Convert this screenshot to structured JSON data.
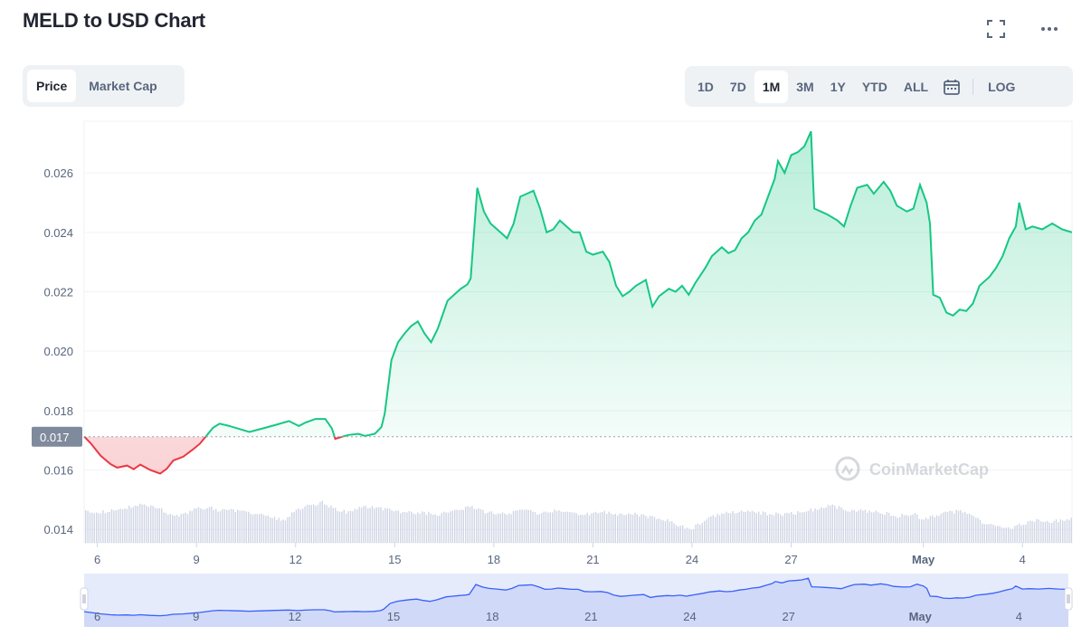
{
  "title": "MELD to USD Chart",
  "icons": {
    "fullscreen": "fullscreen-icon",
    "more": "more-icon",
    "calendar": "calendar-icon"
  },
  "tabs": [
    {
      "label": "Price",
      "active": true
    },
    {
      "label": "Market Cap",
      "active": false
    }
  ],
  "ranges": [
    {
      "label": "1D",
      "active": false
    },
    {
      "label": "7D",
      "active": false
    },
    {
      "label": "1M",
      "active": true
    },
    {
      "label": "3M",
      "active": false
    },
    {
      "label": "1Y",
      "active": false
    },
    {
      "label": "YTD",
      "active": false
    },
    {
      "label": "ALL",
      "active": false
    }
  ],
  "log_label": "LOG",
  "watermark": "CoinMarketCap",
  "colors": {
    "up": "#16c784",
    "down": "#ea3943",
    "navigator": "#3861fb",
    "volume": "#cfd6e4",
    "grid": "#eff2f5",
    "axis_text": "#58667e"
  },
  "chart_data": {
    "type": "line",
    "y_ticks": [
      "0.026",
      "0.024",
      "0.022",
      "0.020",
      "0.018",
      "0.016",
      "0.014"
    ],
    "y_tick_values": [
      0.026,
      0.024,
      0.022,
      0.02,
      0.018,
      0.016,
      0.014
    ],
    "ylim": [
      0.01355,
      0.02774
    ],
    "x_ticks": [
      {
        "label": "6",
        "day": 6
      },
      {
        "label": "9",
        "day": 9
      },
      {
        "label": "12",
        "day": 12
      },
      {
        "label": "15",
        "day": 15
      },
      {
        "label": "18",
        "day": 18
      },
      {
        "label": "21",
        "day": 21
      },
      {
        "label": "24",
        "day": 24
      },
      {
        "label": "27",
        "day": 27
      },
      {
        "label": "May",
        "day": 31
      },
      {
        "label": "4",
        "day": 34
      }
    ],
    "xlim": [
      5.6,
      35.5
    ],
    "reference_price": 0.01712,
    "reference_label": "0.017",
    "series": [
      {
        "points": [
          [
            5.6,
            0.01713
          ],
          [
            5.8,
            0.0169
          ],
          [
            6.1,
            0.01648
          ],
          [
            6.4,
            0.0162
          ],
          [
            6.6,
            0.01608
          ],
          [
            6.9,
            0.01615
          ],
          [
            7.1,
            0.01603
          ],
          [
            7.3,
            0.01618
          ],
          [
            7.6,
            0.016
          ],
          [
            7.9,
            0.01588
          ],
          [
            8.1,
            0.01604
          ],
          [
            8.3,
            0.01632
          ],
          [
            8.6,
            0.01645
          ],
          [
            8.9,
            0.0167
          ],
          [
            9.1,
            0.01688
          ],
          [
            9.3,
            0.01715
          ],
          [
            9.5,
            0.01742
          ],
          [
            9.7,
            0.01756
          ],
          [
            10.0,
            0.01748
          ],
          [
            10.3,
            0.01738
          ],
          [
            10.6,
            0.01728
          ],
          [
            11.0,
            0.0174
          ],
          [
            11.4,
            0.01752
          ],
          [
            11.8,
            0.01765
          ],
          [
            12.1,
            0.01748
          ],
          [
            12.3,
            0.0176
          ],
          [
            12.6,
            0.01772
          ],
          [
            12.9,
            0.01772
          ],
          [
            13.1,
            0.0174
          ],
          [
            13.2,
            0.01705
          ],
          [
            13.4,
            0.01712
          ],
          [
            13.6,
            0.01718
          ],
          [
            13.9,
            0.01722
          ],
          [
            14.1,
            0.01715
          ],
          [
            14.4,
            0.01722
          ],
          [
            14.6,
            0.01745
          ],
          [
            14.7,
            0.0179
          ],
          [
            14.8,
            0.0188
          ],
          [
            14.9,
            0.0197
          ],
          [
            15.1,
            0.0203
          ],
          [
            15.3,
            0.0206
          ],
          [
            15.5,
            0.02085
          ],
          [
            15.7,
            0.021
          ],
          [
            15.9,
            0.0206
          ],
          [
            16.1,
            0.0203
          ],
          [
            16.3,
            0.02075
          ],
          [
            16.6,
            0.0217
          ],
          [
            16.8,
            0.0219
          ],
          [
            17.0,
            0.0221
          ],
          [
            17.2,
            0.02225
          ],
          [
            17.3,
            0.02245
          ],
          [
            17.5,
            0.0255
          ],
          [
            17.7,
            0.0247
          ],
          [
            17.9,
            0.0243
          ],
          [
            18.2,
            0.024
          ],
          [
            18.4,
            0.0238
          ],
          [
            18.6,
            0.0243
          ],
          [
            18.8,
            0.0252
          ],
          [
            19.0,
            0.0253
          ],
          [
            19.2,
            0.0254
          ],
          [
            19.4,
            0.0248
          ],
          [
            19.6,
            0.024
          ],
          [
            19.8,
            0.0241
          ],
          [
            20.0,
            0.0244
          ],
          [
            20.2,
            0.0242
          ],
          [
            20.4,
            0.024
          ],
          [
            20.6,
            0.024
          ],
          [
            20.8,
            0.02335
          ],
          [
            21.0,
            0.02325
          ],
          [
            21.3,
            0.02335
          ],
          [
            21.5,
            0.023
          ],
          [
            21.7,
            0.0222
          ],
          [
            21.9,
            0.02185
          ],
          [
            22.1,
            0.022
          ],
          [
            22.3,
            0.0222
          ],
          [
            22.6,
            0.0224
          ],
          [
            22.8,
            0.0215
          ],
          [
            23.0,
            0.02185
          ],
          [
            23.3,
            0.0221
          ],
          [
            23.5,
            0.022
          ],
          [
            23.7,
            0.0222
          ],
          [
            23.9,
            0.0219
          ],
          [
            24.1,
            0.0223
          ],
          [
            24.4,
            0.0228
          ],
          [
            24.6,
            0.0232
          ],
          [
            24.9,
            0.0235
          ],
          [
            25.1,
            0.0233
          ],
          [
            25.3,
            0.0234
          ],
          [
            25.5,
            0.0238
          ],
          [
            25.7,
            0.024
          ],
          [
            25.9,
            0.0244
          ],
          [
            26.1,
            0.0246
          ],
          [
            26.3,
            0.0252
          ],
          [
            26.5,
            0.0258
          ],
          [
            26.6,
            0.0264
          ],
          [
            26.8,
            0.026
          ],
          [
            27.0,
            0.0266
          ],
          [
            27.2,
            0.0267
          ],
          [
            27.4,
            0.0269
          ],
          [
            27.6,
            0.0274
          ],
          [
            27.7,
            0.0248
          ],
          [
            27.9,
            0.0247
          ],
          [
            28.1,
            0.0246
          ],
          [
            28.4,
            0.0244
          ],
          [
            28.6,
            0.0242
          ],
          [
            28.8,
            0.0249
          ],
          [
            29.0,
            0.0255
          ],
          [
            29.3,
            0.0256
          ],
          [
            29.5,
            0.0253
          ],
          [
            29.8,
            0.0257
          ],
          [
            30.0,
            0.0254
          ],
          [
            30.2,
            0.0249
          ],
          [
            30.5,
            0.0247
          ],
          [
            30.7,
            0.0248
          ],
          [
            30.9,
            0.0256
          ],
          [
            31.1,
            0.025
          ],
          [
            31.2,
            0.0243
          ],
          [
            31.3,
            0.0219
          ],
          [
            31.5,
            0.0218
          ],
          [
            31.7,
            0.0213
          ],
          [
            31.9,
            0.0212
          ],
          [
            32.1,
            0.0214
          ],
          [
            32.3,
            0.02135
          ],
          [
            32.5,
            0.0216
          ],
          [
            32.7,
            0.0222
          ],
          [
            33.0,
            0.0225
          ],
          [
            33.2,
            0.0228
          ],
          [
            33.4,
            0.0232
          ],
          [
            33.6,
            0.0238
          ],
          [
            33.8,
            0.0242
          ],
          [
            33.9,
            0.025
          ],
          [
            34.1,
            0.0241
          ],
          [
            34.3,
            0.0242
          ],
          [
            34.6,
            0.0241
          ],
          [
            34.9,
            0.0243
          ],
          [
            35.2,
            0.0241
          ],
          [
            35.5,
            0.024
          ]
        ]
      }
    ],
    "volume_range": [
      0.0,
      1.0
    ],
    "volume_profile": [
      [
        5.6,
        0.5
      ],
      [
        6.2,
        0.48
      ],
      [
        6.8,
        0.55
      ],
      [
        7.3,
        0.62
      ],
      [
        7.8,
        0.55
      ],
      [
        8.3,
        0.42
      ],
      [
        8.7,
        0.48
      ],
      [
        9.0,
        0.56
      ],
      [
        9.4,
        0.55
      ],
      [
        9.8,
        0.5
      ],
      [
        10.3,
        0.52
      ],
      [
        10.8,
        0.46
      ],
      [
        11.2,
        0.42
      ],
      [
        11.6,
        0.34
      ],
      [
        12.0,
        0.52
      ],
      [
        12.5,
        0.6
      ],
      [
        12.8,
        0.64
      ],
      [
        13.2,
        0.52
      ],
      [
        13.6,
        0.48
      ],
      [
        14.0,
        0.58
      ],
      [
        14.5,
        0.56
      ],
      [
        15.0,
        0.5
      ],
      [
        15.5,
        0.48
      ],
      [
        15.9,
        0.47
      ],
      [
        16.3,
        0.45
      ],
      [
        16.8,
        0.52
      ],
      [
        17.3,
        0.56
      ],
      [
        17.8,
        0.48
      ],
      [
        18.3,
        0.45
      ],
      [
        18.8,
        0.52
      ],
      [
        19.3,
        0.47
      ],
      [
        19.8,
        0.5
      ],
      [
        20.3,
        0.48
      ],
      [
        20.8,
        0.45
      ],
      [
        21.3,
        0.48
      ],
      [
        21.8,
        0.44
      ],
      [
        22.3,
        0.45
      ],
      [
        22.8,
        0.4
      ],
      [
        23.3,
        0.35
      ],
      [
        23.6,
        0.28
      ],
      [
        23.9,
        0.2
      ],
      [
        24.2,
        0.3
      ],
      [
        24.6,
        0.42
      ],
      [
        25.0,
        0.46
      ],
      [
        25.4,
        0.5
      ],
      [
        25.8,
        0.48
      ],
      [
        26.3,
        0.46
      ],
      [
        26.8,
        0.45
      ],
      [
        27.3,
        0.48
      ],
      [
        27.8,
        0.54
      ],
      [
        28.2,
        0.58
      ],
      [
        28.7,
        0.52
      ],
      [
        29.2,
        0.5
      ],
      [
        29.7,
        0.48
      ],
      [
        30.2,
        0.42
      ],
      [
        30.7,
        0.46
      ],
      [
        31.0,
        0.36
      ],
      [
        31.4,
        0.44
      ],
      [
        31.8,
        0.48
      ],
      [
        32.1,
        0.5
      ],
      [
        32.5,
        0.4
      ],
      [
        32.9,
        0.3
      ],
      [
        33.3,
        0.24
      ],
      [
        33.6,
        0.22
      ],
      [
        34.0,
        0.3
      ],
      [
        34.4,
        0.36
      ],
      [
        34.9,
        0.34
      ],
      [
        35.5,
        0.38
      ]
    ]
  }
}
